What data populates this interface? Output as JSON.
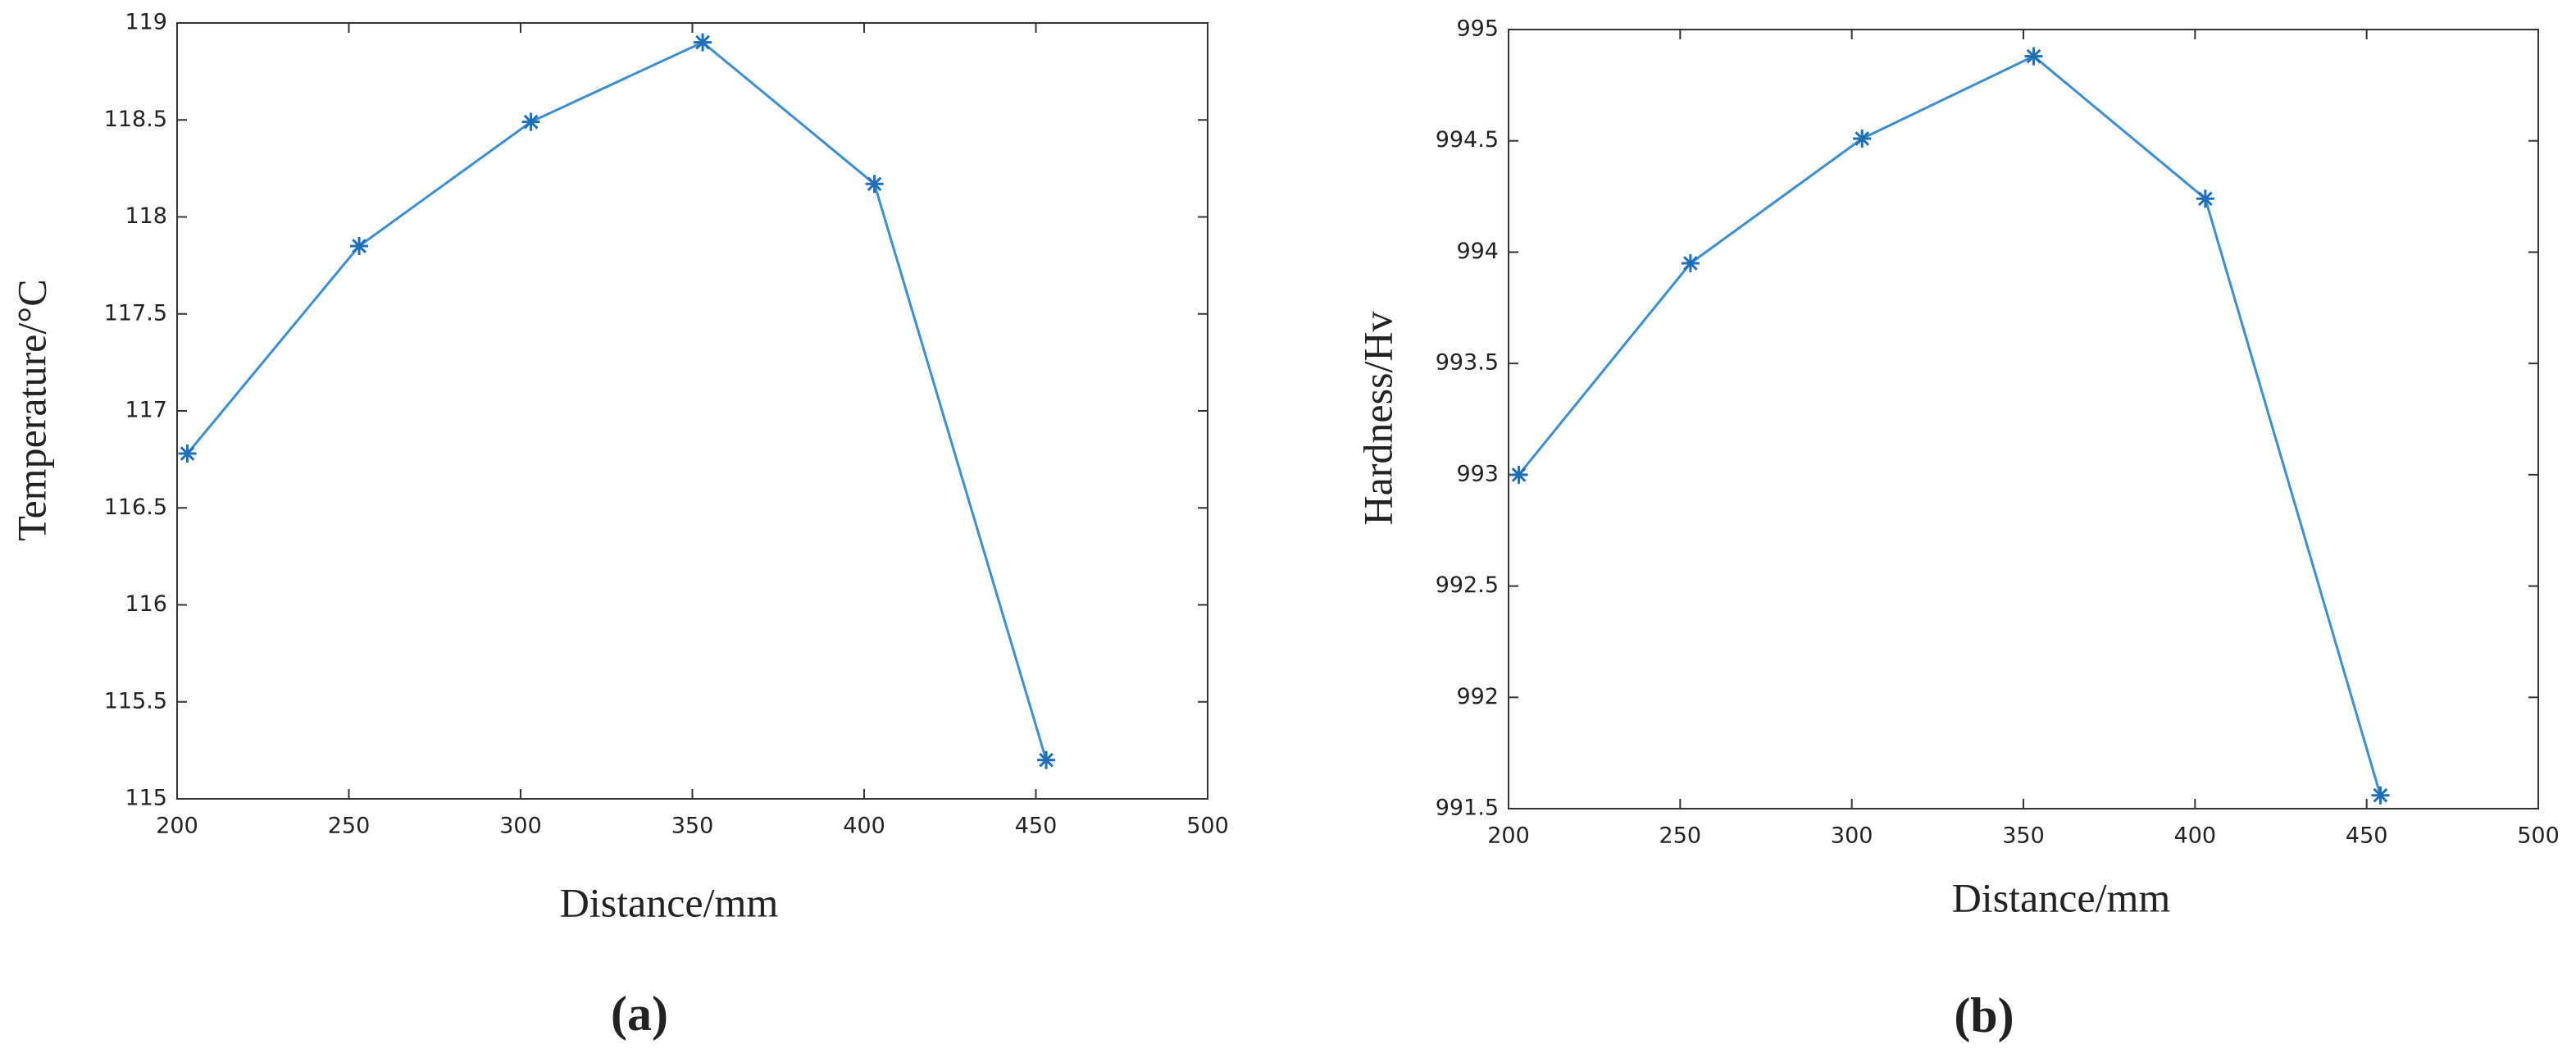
{
  "chart_data": [
    {
      "type": "line",
      "caption": "(a)",
      "xlabel": "Distance/mm",
      "ylabel": "Temperature/°C",
      "x": [
        203,
        253,
        303,
        353,
        403,
        453
      ],
      "series": [
        {
          "color": "#3b8fd0",
          "values": [
            116.78,
            117.85,
            118.49,
            118.9,
            118.17,
            115.2
          ]
        }
      ],
      "xlim": [
        200,
        500
      ],
      "xticks": [
        200,
        250,
        300,
        350,
        400,
        450,
        500
      ],
      "ylim": [
        115,
        119
      ],
      "yticks": [
        115,
        115.5,
        116,
        116.5,
        117,
        117.5,
        118,
        118.5,
        119
      ]
    },
    {
      "type": "line",
      "caption": "(b)",
      "xlabel": "Distance/mm",
      "ylabel": "Hardness/Hv",
      "x": [
        203,
        253,
        303,
        353,
        403,
        454
      ],
      "series": [
        {
          "color": "#3b8fd0",
          "values": [
            993.0,
            993.95,
            994.51,
            994.88,
            994.24,
            991.56
          ]
        }
      ],
      "xlim": [
        200,
        500
      ],
      "xticks": [
        200,
        250,
        300,
        350,
        400,
        450,
        500
      ],
      "ylim": [
        991.5,
        995
      ],
      "yticks": [
        991.5,
        992,
        992.5,
        993,
        993.5,
        994,
        994.5,
        995
      ]
    }
  ]
}
